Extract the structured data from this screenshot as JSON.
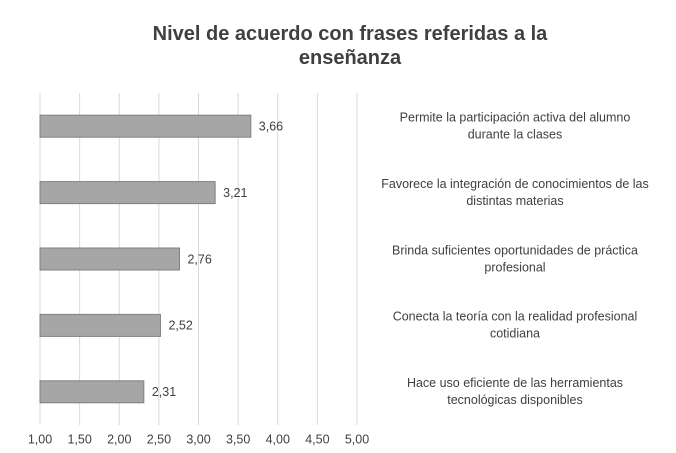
{
  "chart_data": {
    "type": "bar",
    "orientation": "horizontal",
    "title": "Nivel de acuerdo con frases referidas a la enseñanza",
    "categories": [
      [
        "Permite la participación activa del alumno",
        "durante la clases"
      ],
      [
        "Favorece la integración de conocimientos de las",
        "distintas materias"
      ],
      [
        "Brinda suficientes oportunidades de práctica",
        "profesional"
      ],
      [
        "Conecta la teoría con la realidad profesional",
        "cotidiana"
      ],
      [
        "Hace uso eficiente de las herramientas",
        "tecnológicas disponibles"
      ]
    ],
    "values": [
      3.66,
      3.21,
      2.76,
      2.52,
      2.31
    ],
    "value_labels": [
      "3,66",
      "3,21",
      "2,76",
      "2,52",
      "2,31"
    ],
    "color": "#a6a6a6",
    "xlim": [
      1,
      5
    ],
    "xticks": [
      {
        "value": 1,
        "label": "1,00"
      },
      {
        "value": 1.5,
        "label": "1,50"
      },
      {
        "value": 2,
        "label": "2,00"
      },
      {
        "value": 2.5,
        "label": "2,50"
      },
      {
        "value": 3,
        "label": "3,00"
      },
      {
        "value": 3.5,
        "label": "3,50"
      },
      {
        "value": 4,
        "label": "4,00"
      },
      {
        "value": 4.5,
        "label": "4,50"
      },
      {
        "value": 5,
        "label": "5,00"
      }
    ],
    "grid": true
  }
}
